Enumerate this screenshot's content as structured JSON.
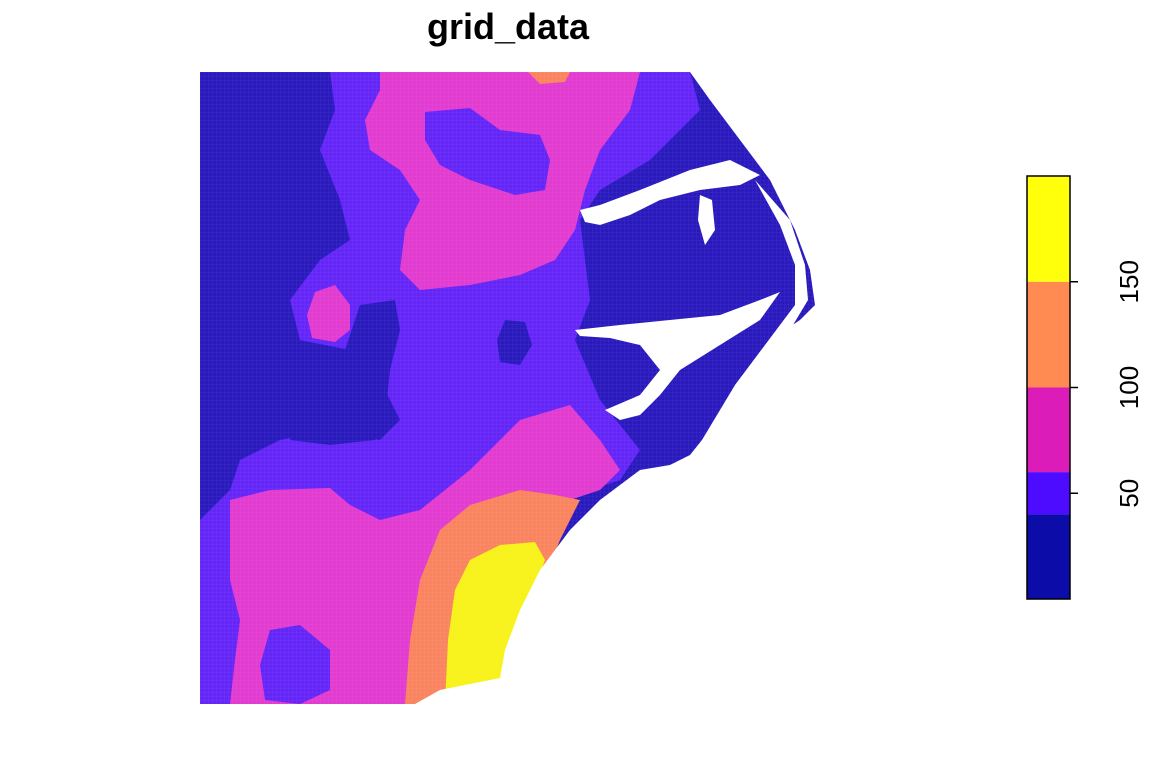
{
  "title": "grid_data",
  "legend": {
    "breaks": [
      0,
      40,
      60,
      100,
      150,
      200
    ],
    "colors": [
      "#0C0CA9",
      "#4D0CFF",
      "#DB1CB8",
      "#FF8A52",
      "#FFFF0C"
    ],
    "ticks": [
      {
        "value": 50,
        "label": "50"
      },
      {
        "value": 100,
        "label": "100"
      },
      {
        "value": 150,
        "label": "150"
      }
    ]
  },
  "map_colors": {
    "class_1": "#2A1ABE",
    "class_2": "#6426F7",
    "class_3": "#E23BD0",
    "class_4": "#F9845F",
    "class_5": "#F7F21A",
    "water": "#FFFFFF"
  }
}
